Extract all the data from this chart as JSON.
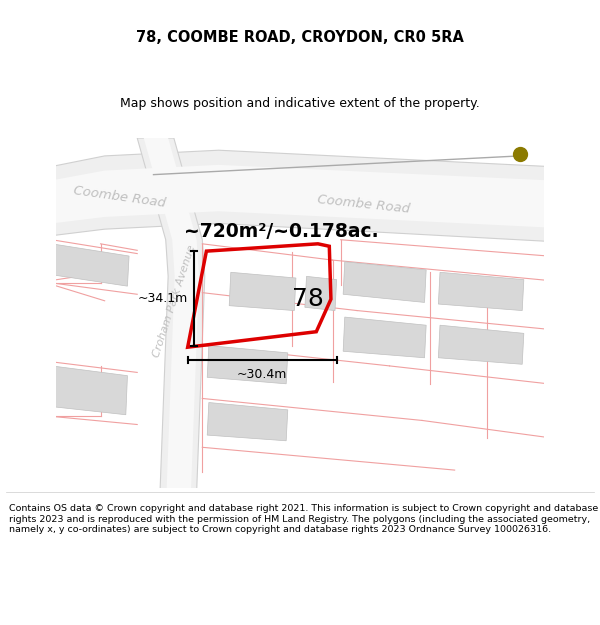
{
  "title": "78, COOMBE ROAD, CROYDON, CR0 5RA",
  "subtitle": "Map shows position and indicative extent of the property.",
  "footer": "Contains OS data © Crown copyright and database right 2021. This information is subject to Crown copyright and database rights 2023 and is reproduced with the permission of HM Land Registry. The polygons (including the associated geometry, namely x, y co-ordinates) are subject to Crown copyright and database rights 2023 Ordnance Survey 100026316.",
  "bg_color": "#ffffff",
  "map_bg": "#ffffff",
  "road_fill": "#efefef",
  "road_edge": "#d0d0d0",
  "pink": "#f0a0a0",
  "red": "#dd0000",
  "gray_bld": "#d8d8d8",
  "gray_bld_edge": "#c0c0c0",
  "gold_dot": "#8b7a00",
  "text_road": "#c0c0c0",
  "title_fontsize": 10.5,
  "subtitle_fontsize": 9.0,
  "footer_fontsize": 6.8,
  "title_bold": true,
  "property_label": "78",
  "area_label": "~720m²/~0.178ac.",
  "dim_h": "~30.4m",
  "dim_v": "~34.1m",
  "croham_label": "Croham Park Avenue",
  "coombe_label1": "Coombe Road",
  "coombe_label2": "Coombe Road"
}
